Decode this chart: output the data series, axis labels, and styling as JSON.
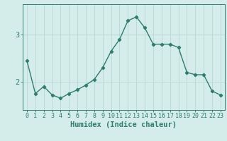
{
  "x": [
    0,
    1,
    2,
    3,
    4,
    5,
    6,
    7,
    8,
    9,
    10,
    11,
    12,
    13,
    14,
    15,
    16,
    17,
    18,
    19,
    20,
    21,
    22,
    23
  ],
  "y": [
    2.45,
    1.75,
    1.9,
    1.72,
    1.65,
    1.75,
    1.83,
    1.93,
    2.05,
    2.3,
    2.65,
    2.9,
    3.3,
    3.38,
    3.15,
    2.8,
    2.8,
    2.8,
    2.73,
    2.2,
    2.15,
    2.15,
    1.8,
    1.72
  ],
  "xlabel": "Humidex (Indice chaleur)",
  "yticks": [
    2,
    3
  ],
  "ylim": [
    1.4,
    3.65
  ],
  "xlim": [
    -0.5,
    23.5
  ],
  "line_color": "#2e7d6e",
  "marker": "D",
  "marker_size": 2.2,
  "line_width": 1.0,
  "bg_color": "#d4ecea",
  "grid_color": "#b8d8d4",
  "axis_color": "#2e7d6e",
  "label_color": "#2e7d6e",
  "xlabel_fontsize": 7.5,
  "tick_fontsize": 6.0
}
